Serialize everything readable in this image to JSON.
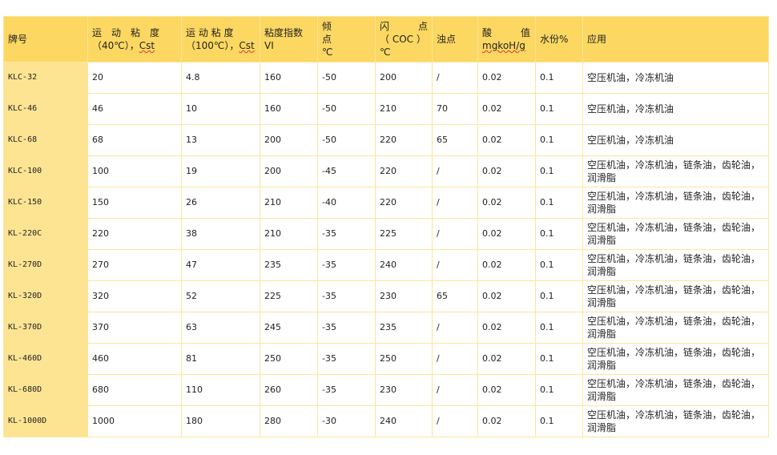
{
  "headers": {
    "grade": "牌号",
    "kv40_a": "运　动　粘　度",
    "kv40_b": "（40℃），",
    "kv40_unit": "Cst",
    "kv100_a": "运 动 粘 度",
    "kv100_b": "（100℃），",
    "kv100_unit": "Cst",
    "vi_a": "粘度指数",
    "vi_b": "VI",
    "pour_a": "倾",
    "pour_b": "点",
    "pour_c": "℃",
    "flash_a": "闪　　　点",
    "flash_b": "（ COC ）",
    "flash_c": "℃",
    "cloud": "浊点",
    "acid_a": "酸　　　值",
    "acid_b": "mgkoH/g",
    "water": "水份%",
    "app": "应用"
  },
  "rows": [
    [
      "KLC-32",
      "20",
      "4.8",
      "160",
      "-50",
      "200",
      "/",
      "0.02",
      "0.1",
      "空压机油，冷冻机油"
    ],
    [
      "KLC-46",
      "46",
      "10",
      "160",
      "-50",
      "210",
      "70",
      "0.02",
      "0.1",
      "空压机油，冷冻机油"
    ],
    [
      "KLC-68",
      "68",
      "13",
      "200",
      "-50",
      "220",
      "65",
      "0.02",
      "0.1",
      "空压机油，冷冻机油"
    ],
    [
      "KLC-100",
      "100",
      "19",
      "200",
      "-45",
      "220",
      "/",
      "0.02",
      "0.1",
      "空压机油，冷冻机油，链条油，齿轮油，润滑脂"
    ],
    [
      "KLC-150",
      "150",
      "26",
      "210",
      "-40",
      "220",
      "/",
      "0.02",
      "0.1",
      "空压机油，冷冻机油，链条油，齿轮油，润滑脂"
    ],
    [
      "KL-220C",
      "220",
      "38",
      "210",
      "-35",
      "225",
      "/",
      "0.02",
      "0.1",
      "空压机油，冷冻机油，链条油，齿轮油，润滑脂"
    ],
    [
      "KL-270D",
      "270",
      "47",
      "235",
      "-35",
      "240",
      "/",
      "0.02",
      "0.1",
      "空压机油，冷冻机油，链条油，齿轮油，润滑脂"
    ],
    [
      "KL-320D",
      "320",
      "52",
      "225",
      "-35",
      "230",
      "65",
      "0.02",
      "0.1",
      "空压机油，冷冻机油，链条油，齿轮油，润滑脂"
    ],
    [
      "KL-370D",
      "370",
      "63",
      "245",
      "-35",
      "235",
      "/",
      "0.02",
      "0.1",
      "空压机油，冷冻机油，链条油，齿轮油，润滑脂"
    ],
    [
      "KL-460D",
      "460",
      "81",
      "250",
      "-35",
      "250",
      "/",
      "0.02",
      "0.1",
      "空压机油，冷冻机油，链条油，齿轮油，润滑脂"
    ],
    [
      "KL-680D",
      "680",
      "110",
      "260",
      "-35",
      "230",
      "/",
      "0.02",
      "0.1",
      "空压机油，冷冻机油，链条油，齿轮油，润滑脂"
    ],
    [
      "KL-1000D",
      "1000",
      "180",
      "280",
      "-30",
      "240",
      "/",
      "0.02",
      "0.1",
      "空压机油，冷冻机油，链条油，齿轮油，润滑脂"
    ]
  ],
  "colors": {
    "header_bg": "#fcd862",
    "first_col_bg": "#fde493",
    "border": "#fce59a"
  }
}
